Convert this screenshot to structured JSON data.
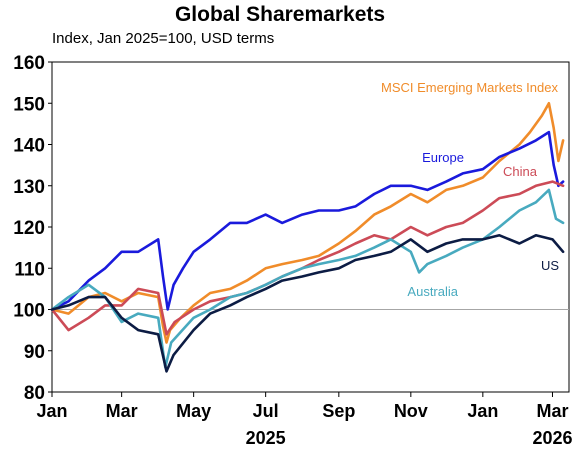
{
  "chart_data": {
    "type": "line",
    "title": "Global Sharemarkets",
    "subtitle": "Index, Jan 2025=100, USD terms",
    "xlabel": "",
    "ylabel": "",
    "ylim": [
      80,
      160
    ],
    "yticks": [
      80,
      90,
      100,
      110,
      120,
      130,
      140,
      150,
      160
    ],
    "xlim": [
      "2025-01-01",
      "2026-03-15"
    ],
    "xticks": [
      {
        "date": "2025-01-01",
        "label": "Jan"
      },
      {
        "date": "2025-03-01",
        "label": "Mar"
      },
      {
        "date": "2025-05-01",
        "label": "May"
      },
      {
        "date": "2025-07-01",
        "label": "Jul"
      },
      {
        "date": "2025-09-01",
        "label": "Sep"
      },
      {
        "date": "2025-11-01",
        "label": "Nov"
      },
      {
        "date": "2026-01-01",
        "label": "Jan"
      },
      {
        "date": "2026-03-01",
        "label": "Mar"
      }
    ],
    "year_labels": [
      {
        "date": "2025-07-01",
        "label": "2025"
      },
      {
        "date": "2026-03-01",
        "label": "2026"
      }
    ],
    "reference_line": 100,
    "grid": false,
    "series": [
      {
        "name": "MSCI Emerging Markets Index",
        "color": "#f08c2a",
        "points": [
          [
            "2025-01-01",
            100
          ],
          [
            "2025-01-15",
            99
          ],
          [
            "2025-02-01",
            103
          ],
          [
            "2025-02-15",
            104
          ],
          [
            "2025-03-01",
            102
          ],
          [
            "2025-03-15",
            104
          ],
          [
            "2025-04-01",
            103
          ],
          [
            "2025-04-05",
            96
          ],
          [
            "2025-04-08",
            92
          ],
          [
            "2025-04-11",
            95
          ],
          [
            "2025-04-20",
            98
          ],
          [
            "2025-05-01",
            101
          ],
          [
            "2025-05-15",
            104
          ],
          [
            "2025-06-01",
            105
          ],
          [
            "2025-06-15",
            107
          ],
          [
            "2025-07-01",
            110
          ],
          [
            "2025-07-15",
            111
          ],
          [
            "2025-08-01",
            112
          ],
          [
            "2025-08-15",
            113
          ],
          [
            "2025-09-01",
            116
          ],
          [
            "2025-09-15",
            119
          ],
          [
            "2025-10-01",
            123
          ],
          [
            "2025-10-15",
            125
          ],
          [
            "2025-11-01",
            128
          ],
          [
            "2025-11-15",
            126
          ],
          [
            "2025-12-01",
            129
          ],
          [
            "2025-12-15",
            130
          ],
          [
            "2026-01-01",
            132
          ],
          [
            "2026-01-15",
            136
          ],
          [
            "2026-02-01",
            140
          ],
          [
            "2026-02-10",
            143
          ],
          [
            "2026-02-20",
            147
          ],
          [
            "2026-02-26",
            150
          ],
          [
            "2026-03-02",
            144
          ],
          [
            "2026-03-06",
            136
          ],
          [
            "2026-03-10",
            141
          ]
        ]
      },
      {
        "name": "Europe",
        "color": "#1a1adc",
        "points": [
          [
            "2025-01-01",
            100
          ],
          [
            "2025-01-15",
            102
          ],
          [
            "2025-02-01",
            107
          ],
          [
            "2025-02-15",
            110
          ],
          [
            "2025-03-01",
            114
          ],
          [
            "2025-03-15",
            114
          ],
          [
            "2025-04-01",
            117
          ],
          [
            "2025-04-05",
            108
          ],
          [
            "2025-04-09",
            100
          ],
          [
            "2025-04-14",
            106
          ],
          [
            "2025-04-22",
            110
          ],
          [
            "2025-05-01",
            114
          ],
          [
            "2025-05-15",
            117
          ],
          [
            "2025-06-01",
            121
          ],
          [
            "2025-06-15",
            121
          ],
          [
            "2025-07-01",
            123
          ],
          [
            "2025-07-15",
            121
          ],
          [
            "2025-08-01",
            123
          ],
          [
            "2025-08-15",
            124
          ],
          [
            "2025-09-01",
            124
          ],
          [
            "2025-09-15",
            125
          ],
          [
            "2025-10-01",
            128
          ],
          [
            "2025-10-15",
            130
          ],
          [
            "2025-11-01",
            130
          ],
          [
            "2025-11-15",
            129
          ],
          [
            "2025-12-01",
            131
          ],
          [
            "2025-12-15",
            133
          ],
          [
            "2026-01-01",
            134
          ],
          [
            "2026-01-15",
            137
          ],
          [
            "2026-02-01",
            139
          ],
          [
            "2026-02-15",
            141
          ],
          [
            "2026-02-26",
            143
          ],
          [
            "2026-03-02",
            135
          ],
          [
            "2026-03-06",
            130
          ],
          [
            "2026-03-10",
            131
          ]
        ]
      },
      {
        "name": "China",
        "color": "#cc4b57",
        "points": [
          [
            "2025-01-01",
            100
          ],
          [
            "2025-01-15",
            95
          ],
          [
            "2025-02-01",
            98
          ],
          [
            "2025-02-15",
            101
          ],
          [
            "2025-03-01",
            101
          ],
          [
            "2025-03-15",
            105
          ],
          [
            "2025-04-01",
            104
          ],
          [
            "2025-04-08",
            94
          ],
          [
            "2025-04-15",
            97
          ],
          [
            "2025-05-01",
            100
          ],
          [
            "2025-05-15",
            102
          ],
          [
            "2025-06-01",
            103
          ],
          [
            "2025-06-15",
            104
          ],
          [
            "2025-07-01",
            106
          ],
          [
            "2025-07-15",
            108
          ],
          [
            "2025-08-01",
            110
          ],
          [
            "2025-08-15",
            112
          ],
          [
            "2025-09-01",
            114
          ],
          [
            "2025-09-15",
            116
          ],
          [
            "2025-10-01",
            118
          ],
          [
            "2025-10-15",
            117
          ],
          [
            "2025-11-01",
            120
          ],
          [
            "2025-11-15",
            118
          ],
          [
            "2025-12-01",
            120
          ],
          [
            "2025-12-15",
            121
          ],
          [
            "2026-01-01",
            124
          ],
          [
            "2026-01-15",
            127
          ],
          [
            "2026-02-01",
            128
          ],
          [
            "2026-02-15",
            130
          ],
          [
            "2026-03-01",
            131
          ],
          [
            "2026-03-10",
            130
          ]
        ]
      },
      {
        "name": "Australia",
        "color": "#48aabf",
        "points": [
          [
            "2025-01-01",
            100
          ],
          [
            "2025-01-15",
            103
          ],
          [
            "2025-02-01",
            106
          ],
          [
            "2025-02-15",
            103
          ],
          [
            "2025-03-01",
            97
          ],
          [
            "2025-03-15",
            99
          ],
          [
            "2025-04-01",
            98
          ],
          [
            "2025-04-07",
            86
          ],
          [
            "2025-04-12",
            92
          ],
          [
            "2025-05-01",
            98
          ],
          [
            "2025-05-15",
            100
          ],
          [
            "2025-06-01",
            103
          ],
          [
            "2025-06-15",
            104
          ],
          [
            "2025-07-01",
            106
          ],
          [
            "2025-07-15",
            108
          ],
          [
            "2025-08-01",
            110
          ],
          [
            "2025-08-15",
            111
          ],
          [
            "2025-09-01",
            112
          ],
          [
            "2025-09-15",
            113
          ],
          [
            "2025-10-01",
            115
          ],
          [
            "2025-10-15",
            117
          ],
          [
            "2025-11-01",
            114
          ],
          [
            "2025-11-08",
            109
          ],
          [
            "2025-11-15",
            111
          ],
          [
            "2025-12-01",
            113
          ],
          [
            "2025-12-15",
            115
          ],
          [
            "2026-01-01",
            117
          ],
          [
            "2026-01-15",
            120
          ],
          [
            "2026-02-01",
            124
          ],
          [
            "2026-02-15",
            126
          ],
          [
            "2026-02-26",
            129
          ],
          [
            "2026-03-04",
            122
          ],
          [
            "2026-03-10",
            121
          ]
        ]
      },
      {
        "name": "US",
        "color": "#0c1c44",
        "points": [
          [
            "2025-01-01",
            100
          ],
          [
            "2025-01-15",
            101
          ],
          [
            "2025-02-01",
            103
          ],
          [
            "2025-02-15",
            103
          ],
          [
            "2025-03-01",
            98
          ],
          [
            "2025-03-15",
            95
          ],
          [
            "2025-04-01",
            94
          ],
          [
            "2025-04-08",
            85
          ],
          [
            "2025-04-14",
            89
          ],
          [
            "2025-05-01",
            95
          ],
          [
            "2025-05-15",
            99
          ],
          [
            "2025-06-01",
            101
          ],
          [
            "2025-06-15",
            103
          ],
          [
            "2025-07-01",
            105
          ],
          [
            "2025-07-15",
            107
          ],
          [
            "2025-08-01",
            108
          ],
          [
            "2025-08-15",
            109
          ],
          [
            "2025-09-01",
            110
          ],
          [
            "2025-09-15",
            112
          ],
          [
            "2025-10-01",
            113
          ],
          [
            "2025-10-15",
            114
          ],
          [
            "2025-11-01",
            117
          ],
          [
            "2025-11-15",
            114
          ],
          [
            "2025-12-01",
            116
          ],
          [
            "2025-12-15",
            117
          ],
          [
            "2026-01-01",
            117
          ],
          [
            "2026-01-15",
            118
          ],
          [
            "2026-02-01",
            116
          ],
          [
            "2026-02-15",
            118
          ],
          [
            "2026-03-01",
            117
          ],
          [
            "2026-03-10",
            114
          ]
        ]
      }
    ]
  }
}
